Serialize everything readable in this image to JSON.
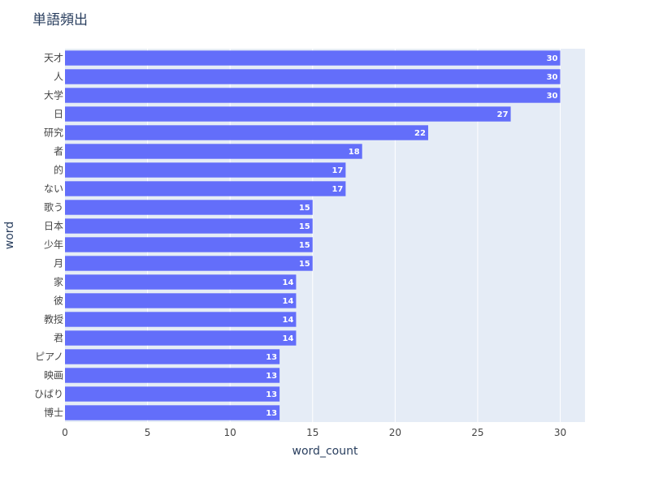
{
  "chart_data": {
    "type": "bar",
    "orientation": "horizontal",
    "title": "単語頻出",
    "xlabel": "word_count",
    "ylabel": "word",
    "xlim": [
      0,
      31.5
    ],
    "x_ticks": [
      0,
      5,
      10,
      15,
      20,
      25,
      30
    ],
    "grid": true,
    "bar_color": "#636efa",
    "plot_bg": "#e5ecf6",
    "categories": [
      "天才",
      "人",
      "大学",
      "日",
      "研究",
      "者",
      "的",
      "ない",
      "歌う",
      "日本",
      "少年",
      "月",
      "家",
      "彼",
      "教授",
      "君",
      "ピアノ",
      "映画",
      "ひばり",
      "博士"
    ],
    "values": [
      30,
      30,
      30,
      27,
      22,
      18,
      17,
      17,
      15,
      15,
      15,
      15,
      14,
      14,
      14,
      14,
      13,
      13,
      13,
      13
    ]
  }
}
